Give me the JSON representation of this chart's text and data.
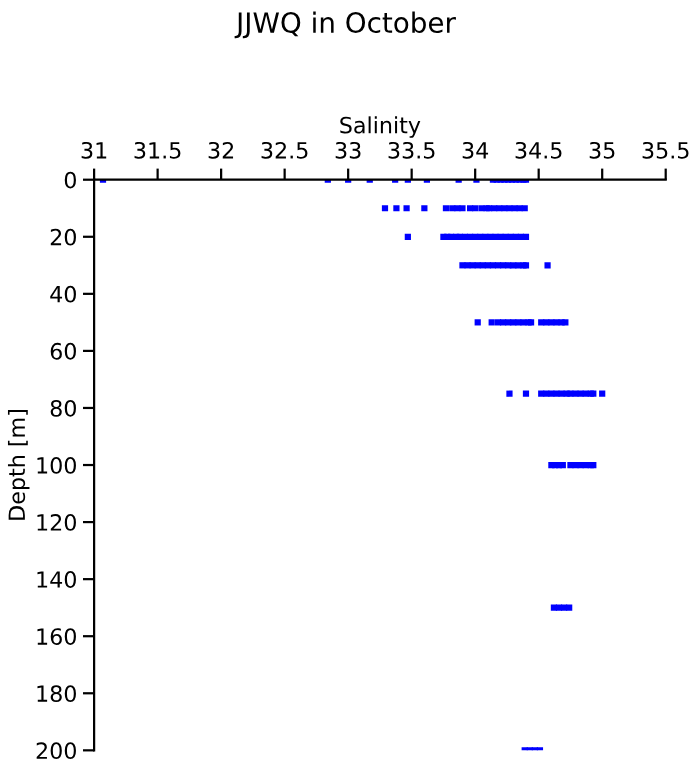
{
  "chart_data": {
    "type": "scatter",
    "title": "JJWQ in October",
    "xlabel": "Salinity",
    "ylabel": "Depth [m]",
    "xlim": [
      31,
      35.5
    ],
    "xticks": [
      31,
      31.5,
      32,
      32.5,
      33,
      33.5,
      34,
      34.5,
      35,
      35.5
    ],
    "ylim": [
      200,
      0
    ],
    "yticks": [
      0,
      20,
      40,
      60,
      80,
      100,
      120,
      140,
      160,
      180,
      200
    ],
    "marker": "square",
    "grid": false,
    "series": [
      {
        "color": "#0000ff",
        "x": [
          31.07,
          32.84,
          33.0,
          33.17,
          33.37,
          33.47,
          33.62,
          33.87,
          34.01,
          34.14,
          34.17,
          34.2,
          34.23,
          34.26,
          34.29,
          34.32,
          34.35,
          34.38,
          34.4,
          33.29,
          33.38,
          33.46,
          33.6,
          33.77,
          33.82,
          33.86,
          33.9,
          33.96,
          34.0,
          34.05,
          34.09,
          34.11,
          34.15,
          34.19,
          34.23,
          34.27,
          34.31,
          34.35,
          34.39,
          33.47,
          33.75,
          33.78,
          33.81,
          33.85,
          33.88,
          33.92,
          33.96,
          34.0,
          34.04,
          34.08,
          34.12,
          34.16,
          34.2,
          34.24,
          34.28,
          34.32,
          34.36,
          34.4,
          33.9,
          33.94,
          33.98,
          34.02,
          34.06,
          34.1,
          34.14,
          34.18,
          34.22,
          34.26,
          34.3,
          34.34,
          34.38,
          34.4,
          34.57,
          34.02,
          34.13,
          34.18,
          34.22,
          34.26,
          34.3,
          34.34,
          34.38,
          34.42,
          34.44,
          34.52,
          34.56,
          34.6,
          34.64,
          34.68,
          34.71,
          34.27,
          34.4,
          34.52,
          34.56,
          34.6,
          34.64,
          34.68,
          34.72,
          34.75,
          34.79,
          34.83,
          34.87,
          34.91,
          34.93,
          35.0,
          34.6,
          34.63,
          34.66,
          34.69,
          34.75,
          34.79,
          34.83,
          34.87,
          34.91,
          34.93,
          34.62,
          34.66,
          34.7,
          34.74,
          34.39,
          34.43,
          34.47,
          34.51
        ],
        "values": [
          0,
          0,
          0,
          0,
          0,
          0,
          0,
          0,
          0,
          0,
          0,
          0,
          0,
          0,
          0,
          0,
          0,
          0,
          0,
          10,
          10,
          10,
          10,
          10,
          10,
          10,
          10,
          10,
          10,
          10,
          10,
          10,
          10,
          10,
          10,
          10,
          10,
          10,
          10,
          20,
          20,
          20,
          20,
          20,
          20,
          20,
          20,
          20,
          20,
          20,
          20,
          20,
          20,
          20,
          20,
          20,
          20,
          20,
          30,
          30,
          30,
          30,
          30,
          30,
          30,
          30,
          30,
          30,
          30,
          30,
          30,
          30,
          30,
          50,
          50,
          50,
          50,
          50,
          50,
          50,
          50,
          50,
          50,
          50,
          50,
          50,
          50,
          50,
          50,
          75,
          75,
          75,
          75,
          75,
          75,
          75,
          75,
          75,
          75,
          75,
          75,
          75,
          75,
          75,
          100,
          100,
          100,
          100,
          100,
          100,
          100,
          100,
          100,
          100,
          150,
          150,
          150,
          150,
          200,
          200,
          200,
          200
        ]
      }
    ]
  }
}
